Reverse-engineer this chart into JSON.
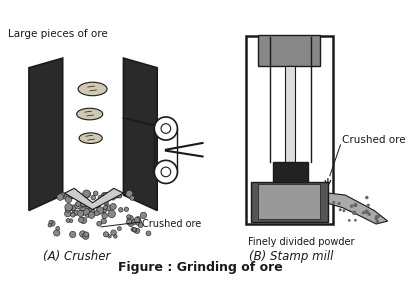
{
  "title": "Figure : Grinding of ore",
  "label_A": "(A) Crusher",
  "label_B": "(B) Stamp mill",
  "text_large_pieces": "Large pieces of ore",
  "text_crushed_ore_A": "Crushed ore",
  "text_crushed_ore_B": "Crushed ore",
  "text_finely_divided": "Finely divided powder",
  "bg_color": "#ffffff",
  "line_color": "#1a1a1a",
  "dark_color": "#2a2a2a",
  "gray_color": "#888888",
  "title_fontsize": 9,
  "label_fontsize": 8.5,
  "annotation_fontsize": 7.5
}
